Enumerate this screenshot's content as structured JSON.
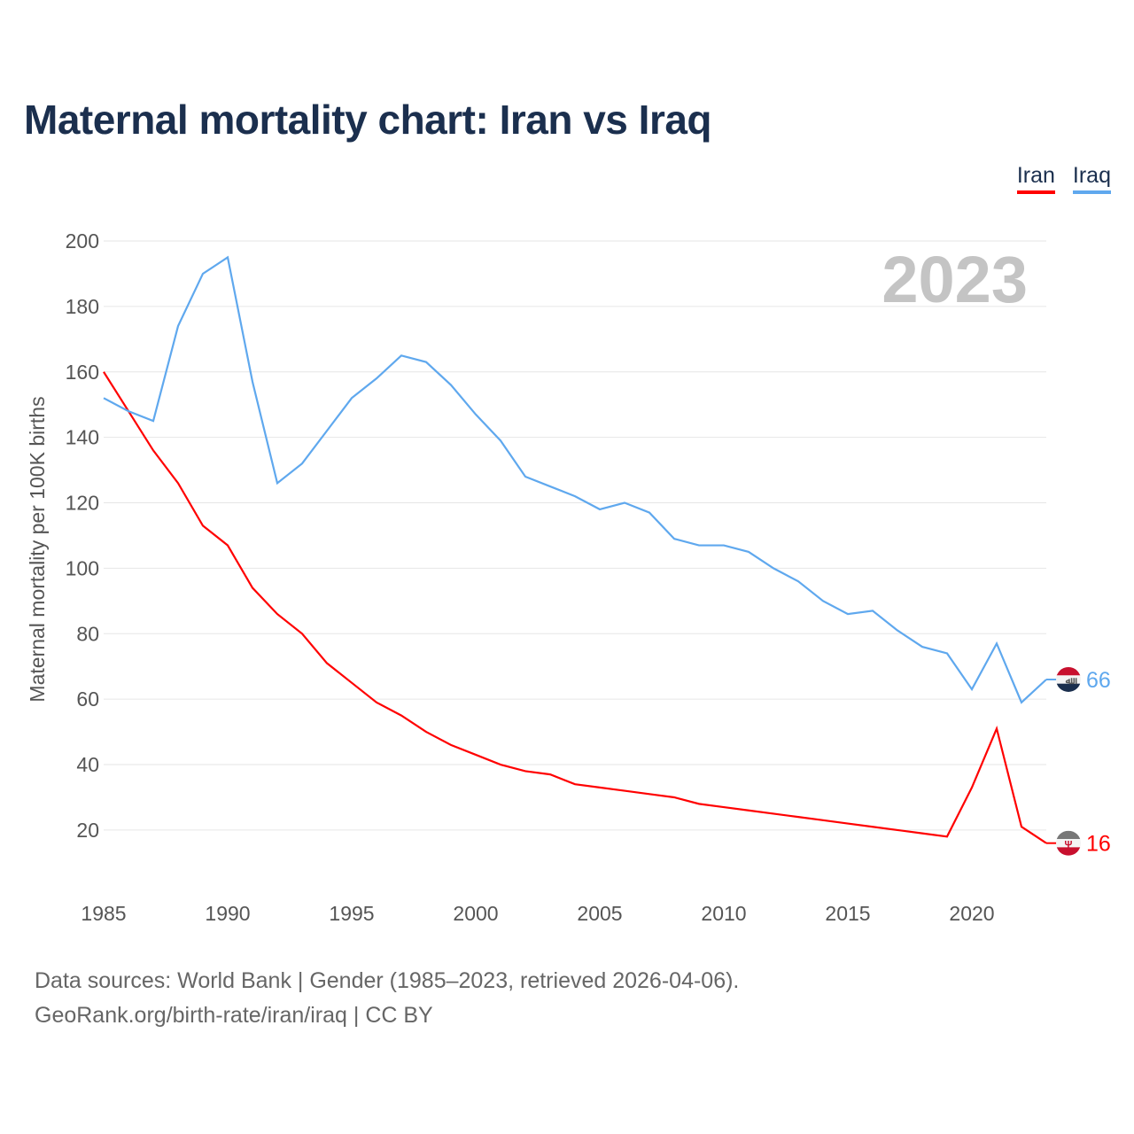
{
  "title": "Maternal mortality chart: Iran vs Iraq",
  "source_lines": [
    "Data sources: World Bank | Gender (1985–2023, retrieved 2026-04-06).",
    "GeoRank.org/birth-rate/iran/iraq | CC BY"
  ],
  "chart_data": {
    "type": "line",
    "title": "Maternal mortality chart: Iran vs Iraq",
    "ylabel": "Maternal mortality per 100K births",
    "xlabel": "",
    "year_watermark": "2023",
    "ylim": [
      0,
      200
    ],
    "yticks": [
      20,
      40,
      60,
      80,
      100,
      120,
      140,
      160,
      180,
      200
    ],
    "xticks": [
      1985,
      1990,
      1995,
      2000,
      2005,
      2010,
      2015,
      2020
    ],
    "x": [
      1985,
      1986,
      1987,
      1988,
      1989,
      1990,
      1991,
      1992,
      1993,
      1994,
      1995,
      1996,
      1997,
      1998,
      1999,
      2000,
      2001,
      2002,
      2003,
      2004,
      2005,
      2006,
      2007,
      2008,
      2009,
      2010,
      2011,
      2012,
      2013,
      2014,
      2015,
      2016,
      2017,
      2018,
      2019,
      2020,
      2021,
      2022,
      2023
    ],
    "legend_position": "top-right",
    "grid": true,
    "series": [
      {
        "name": "Iran",
        "color": "#ff0000",
        "end_label": "16",
        "flag": "iran-flag",
        "values": [
          160,
          148,
          136,
          126,
          113,
          107,
          94,
          86,
          80,
          71,
          65,
          59,
          55,
          50,
          46,
          43,
          40,
          38,
          37,
          34,
          33,
          32,
          31,
          30,
          28,
          27,
          26,
          25,
          24,
          23,
          22,
          21,
          20,
          19,
          18,
          33,
          51,
          21,
          16
        ]
      },
      {
        "name": "Iraq",
        "color": "#5fa8ee",
        "end_label": "66",
        "flag": "iraq-flag",
        "values": [
          152,
          148,
          145,
          174,
          190,
          195,
          157,
          126,
          132,
          142,
          152,
          158,
          165,
          163,
          156,
          147,
          139,
          128,
          125,
          122,
          118,
          120,
          117,
          109,
          107,
          107,
          105,
          100,
          96,
          90,
          86,
          87,
          81,
          76,
          74,
          63,
          77,
          59,
          66
        ]
      }
    ]
  }
}
